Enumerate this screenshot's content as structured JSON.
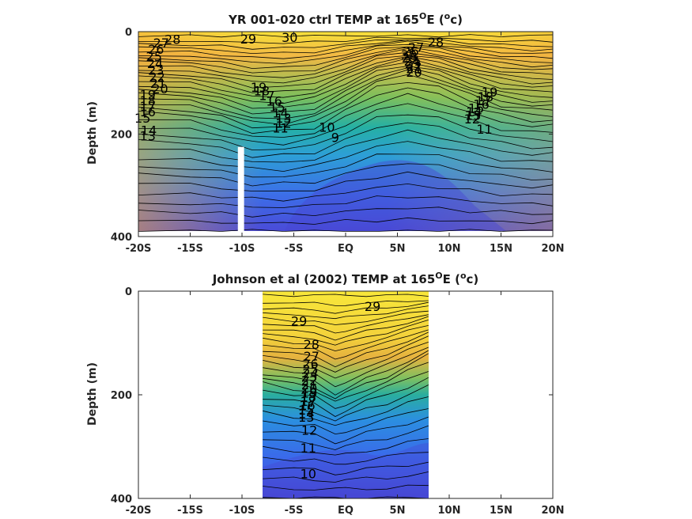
{
  "chart_data": [
    {
      "type": "heatmap",
      "title": "YR 001-020 ctrl TEMP at 165",
      "title_sup": "O",
      "title_end_pre": "E (",
      "title_end_sup": "o",
      "title_end_post": "c)",
      "ylabel": "Depth (m)",
      "xlim": [
        -20,
        20
      ],
      "ylim": [
        0,
        400
      ],
      "y_reversed": true,
      "x_ticks": [
        {
          "v": -20,
          "label": "-20S"
        },
        {
          "v": -15,
          "label": "-15S"
        },
        {
          "v": -10,
          "label": "-10S"
        },
        {
          "v": -5,
          "label": "-5S"
        },
        {
          "v": 0,
          "label": "EQ"
        },
        {
          "v": 5,
          "label": "5N"
        },
        {
          "v": 10,
          "label": "10N"
        },
        {
          "v": 15,
          "label": "15N"
        },
        {
          "v": 20,
          "label": "20N"
        }
      ],
      "y_ticks": [
        {
          "v": 0,
          "label": "0"
        },
        {
          "v": 200,
          "label": "200"
        },
        {
          "v": 400,
          "label": "400"
        }
      ],
      "data_x_range": [
        -20,
        20
      ],
      "data_y_range": [
        0,
        390
      ],
      "gap_lat": [
        -10.4,
        -9.8
      ],
      "gap_depth": [
        225,
        400
      ],
      "thermocline": [
        {
          "x": -20,
          "y": 135
        },
        {
          "x": -15,
          "y": 140
        },
        {
          "x": -12,
          "y": 155
        },
        {
          "x": -9,
          "y": 175
        },
        {
          "x": -6,
          "y": 175
        },
        {
          "x": -3,
          "y": 165
        },
        {
          "x": 0,
          "y": 130
        },
        {
          "x": 3,
          "y": 95
        },
        {
          "x": 6,
          "y": 80
        },
        {
          "x": 9,
          "y": 95
        },
        {
          "x": 12,
          "y": 120
        },
        {
          "x": 15,
          "y": 140
        },
        {
          "x": 18,
          "y": 150
        },
        {
          "x": 20,
          "y": 150
        }
      ],
      "contour_labels": [
        {
          "text": "28",
          "x": -16.7,
          "y": 15
        },
        {
          "text": "27",
          "x": -17.8,
          "y": 22
        },
        {
          "text": "26",
          "x": -18.3,
          "y": 34
        },
        {
          "text": "25",
          "x": -18.5,
          "y": 48
        },
        {
          "text": "24",
          "x": -18.4,
          "y": 62
        },
        {
          "text": "23",
          "x": -18.3,
          "y": 75
        },
        {
          "text": "22",
          "x": -18.2,
          "y": 88
        },
        {
          "text": "21",
          "x": -18.1,
          "y": 100
        },
        {
          "text": "20",
          "x": -17.9,
          "y": 111
        },
        {
          "text": "19",
          "x": -19.1,
          "y": 123
        },
        {
          "text": "18",
          "x": -19.1,
          "y": 134
        },
        {
          "text": "17",
          "x": -19.1,
          "y": 145
        },
        {
          "text": "16",
          "x": -19.1,
          "y": 156
        },
        {
          "text": "15",
          "x": -19.6,
          "y": 168
        },
        {
          "text": "14",
          "x": -19.0,
          "y": 192
        },
        {
          "text": "13",
          "x": -19.1,
          "y": 203
        },
        {
          "text": "29",
          "x": -9.4,
          "y": 14
        },
        {
          "text": "30",
          "x": -5.4,
          "y": 11
        },
        {
          "text": "28",
          "x": 8.7,
          "y": 20
        },
        {
          "text": "27",
          "x": 6.8,
          "y": 30
        },
        {
          "text": "26",
          "x": 6.3,
          "y": 38
        },
        {
          "text": "30",
          "x": 6.1,
          "y": 45
        },
        {
          "text": "25",
          "x": 6.2,
          "y": 50
        },
        {
          "text": "24",
          "x": 6.4,
          "y": 57
        },
        {
          "text": "23",
          "x": 6.5,
          "y": 62
        },
        {
          "text": "22",
          "x": 6.6,
          "y": 67
        },
        {
          "text": "21",
          "x": 6.6,
          "y": 72
        },
        {
          "text": "20",
          "x": 6.6,
          "y": 79
        },
        {
          "text": "19",
          "x": -8.4,
          "y": 108
        },
        {
          "text": "18",
          "x": -8.1,
          "y": 115
        },
        {
          "text": "17",
          "x": -7.6,
          "y": 124
        },
        {
          "text": "16",
          "x": -6.9,
          "y": 135
        },
        {
          "text": "15",
          "x": -6.6,
          "y": 147
        },
        {
          "text": "14",
          "x": -6.3,
          "y": 158
        },
        {
          "text": "13",
          "x": -6.0,
          "y": 168
        },
        {
          "text": "12",
          "x": -6.0,
          "y": 178
        },
        {
          "text": "11",
          "x": -6.3,
          "y": 188
        },
        {
          "text": "10",
          "x": -1.8,
          "y": 186
        },
        {
          "text": "9",
          "x": -1.0,
          "y": 206
        },
        {
          "text": "19",
          "x": 13.9,
          "y": 117
        },
        {
          "text": "18",
          "x": 13.5,
          "y": 127
        },
        {
          "text": "17",
          "x": 13.3,
          "y": 134
        },
        {
          "text": "16",
          "x": 13.1,
          "y": 141
        },
        {
          "text": "15",
          "x": 12.6,
          "y": 149
        },
        {
          "text": "14",
          "x": 12.4,
          "y": 156
        },
        {
          "text": "13",
          "x": 12.3,
          "y": 163
        },
        {
          "text": "12",
          "x": 12.2,
          "y": 170
        },
        {
          "text": "11",
          "x": 13.4,
          "y": 190
        }
      ]
    },
    {
      "type": "heatmap",
      "title": "Johnson et al (2002) TEMP at 165",
      "title_sup": "O",
      "title_end_pre": "E (",
      "title_end_sup": "o",
      "title_end_post": "c)",
      "ylabel": "Depth (m)",
      "xlim": [
        -20,
        20
      ],
      "ylim": [
        0,
        400
      ],
      "y_reversed": true,
      "x_ticks": [
        {
          "v": -20,
          "label": "-20S"
        },
        {
          "v": -15,
          "label": "-15S"
        },
        {
          "v": -10,
          "label": "-10S"
        },
        {
          "v": -5,
          "label": "-5S"
        },
        {
          "v": 0,
          "label": "EQ"
        },
        {
          "v": 5,
          "label": "5N"
        },
        {
          "v": 10,
          "label": "10N"
        },
        {
          "v": 15,
          "label": "15N"
        },
        {
          "v": 20,
          "label": "20N"
        }
      ],
      "y_ticks": [
        {
          "v": 0,
          "label": "0"
        },
        {
          "v": 200,
          "label": "200"
        },
        {
          "v": 400,
          "label": "400"
        }
      ],
      "data_x_range": [
        -8,
        8
      ],
      "data_y_range": [
        0,
        400
      ],
      "thermocline": [
        {
          "x": -8,
          "y": 165
        },
        {
          "x": -5,
          "y": 175
        },
        {
          "x": -3,
          "y": 180
        },
        {
          "x": -1,
          "y": 205
        },
        {
          "x": 0,
          "y": 195
        },
        {
          "x": 2,
          "y": 175
        },
        {
          "x": 4,
          "y": 160
        },
        {
          "x": 6,
          "y": 140
        },
        {
          "x": 8,
          "y": 120
        }
      ],
      "contour_labels": [
        {
          "text": "29",
          "x": -4.5,
          "y": 57
        },
        {
          "text": "29",
          "x": 2.6,
          "y": 29
        },
        {
          "text": "28",
          "x": -3.3,
          "y": 102
        },
        {
          "text": "27",
          "x": -3.3,
          "y": 125
        },
        {
          "text": "26",
          "x": -3.4,
          "y": 140
        },
        {
          "text": "25",
          "x": -3.4,
          "y": 150
        },
        {
          "text": "24",
          "x": -3.4,
          "y": 158
        },
        {
          "text": "23",
          "x": -3.5,
          "y": 165
        },
        {
          "text": "22",
          "x": -3.5,
          "y": 172
        },
        {
          "text": "21",
          "x": -3.5,
          "y": 180
        },
        {
          "text": "20",
          "x": -3.5,
          "y": 188
        },
        {
          "text": "19",
          "x": -3.5,
          "y": 196
        },
        {
          "text": "18",
          "x": -3.6,
          "y": 204
        },
        {
          "text": "17",
          "x": -3.6,
          "y": 212
        },
        {
          "text": "16",
          "x": -3.7,
          "y": 220
        },
        {
          "text": "15",
          "x": -3.8,
          "y": 229
        },
        {
          "text": "14",
          "x": -3.8,
          "y": 236
        },
        {
          "text": "13",
          "x": -3.8,
          "y": 243
        },
        {
          "text": "12",
          "x": -3.5,
          "y": 268
        },
        {
          "text": "11",
          "x": -3.6,
          "y": 302
        },
        {
          "text": "10",
          "x": -3.6,
          "y": 352
        }
      ]
    }
  ]
}
